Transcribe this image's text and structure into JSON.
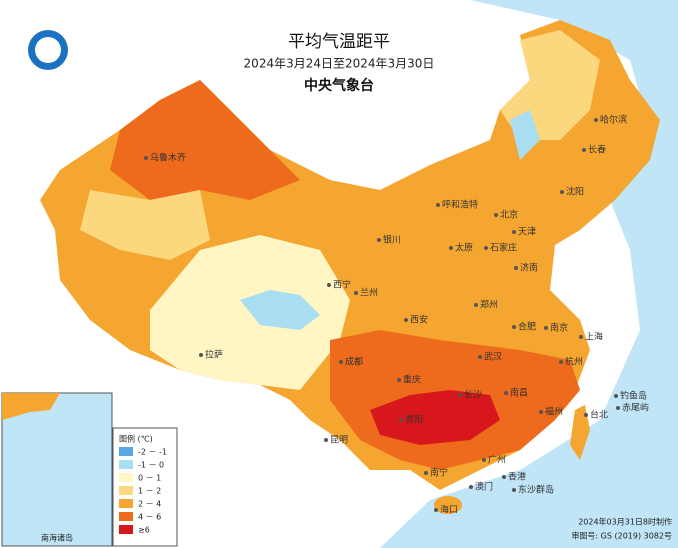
{
  "header": {
    "title": "平均气温距平",
    "subtitle": "2024年3月24日至2024年3月30日",
    "agency": "中央气象台"
  },
  "legend": {
    "title": "图例 (℃)",
    "items": [
      {
        "label": "-2 － -1",
        "color": "#5aa7e6"
      },
      {
        "label": "-1 － 0",
        "color": "#a8ddf2"
      },
      {
        "label": "0 － 1",
        "color": "#fff6c4"
      },
      {
        "label": "1 － 2",
        "color": "#fbd77d"
      },
      {
        "label": "2 － 4",
        "color": "#f5a630"
      },
      {
        "label": "4 － 6",
        "color": "#ee6a1c"
      },
      {
        "label": "≥6",
        "color": "#d7171b"
      }
    ]
  },
  "cities": [
    "乌鲁木齐",
    "哈尔滨",
    "长春",
    "沈阳",
    "呼和浩特",
    "北京",
    "天津",
    "银川",
    "太原",
    "石家庄",
    "济南",
    "西宁",
    "兰州",
    "郑州",
    "西安",
    "合肥",
    "南京",
    "上海",
    "拉萨",
    "成都",
    "武汉",
    "杭州",
    "重庆",
    "长沙",
    "南昌",
    "贵阳",
    "福州",
    "台北",
    "昆明",
    "南宁",
    "广州",
    "香港",
    "澳门",
    "海口",
    "东沙群岛",
    "钓鱼岛",
    "赤尾屿"
  ],
  "inset": {
    "label": "南海诸岛"
  },
  "footer": {
    "made": "2024年03月31日8时制作",
    "map_no": "审图号: GS (2019) 3082号"
  }
}
